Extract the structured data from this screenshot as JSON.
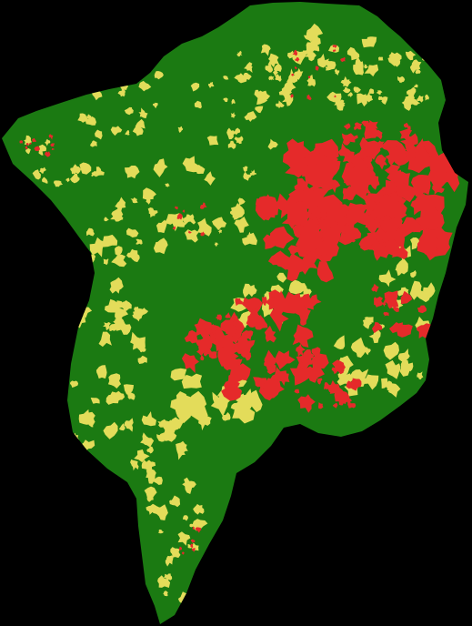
{
  "map": {
    "colors": {
      "background": "#000000",
      "class_green": "#1b7a12",
      "class_yellow": "#e3dc5a",
      "class_red": "#e52a2a"
    },
    "classes": [
      {
        "id": "green",
        "color": "#1b7a12"
      },
      {
        "id": "yellow",
        "color": "#e3dc5a"
      },
      {
        "id": "red",
        "color": "#e52a2a"
      }
    ]
  }
}
